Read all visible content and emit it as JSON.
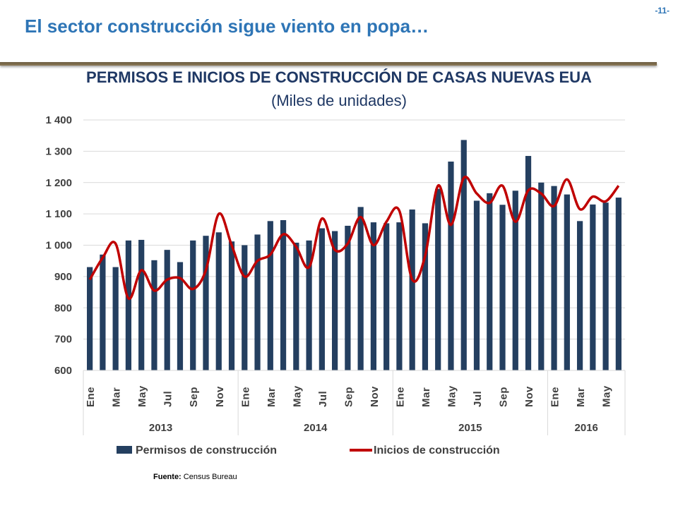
{
  "header": {
    "slide_title": "El sector construcción sigue viento en popa…",
    "page_number": "-11-"
  },
  "chart_data": {
    "type": "bar",
    "title": "PERMISOS E INICIOS DE CONSTRUCCIÓN DE CASAS NUEVAS EUA",
    "subtitle": "(Miles de unidades)",
    "ylim": [
      600,
      1400
    ],
    "yticks": [
      "600",
      "700",
      "800",
      "900",
      "1 000",
      "1 100",
      "1 200",
      "1 300",
      "1 400"
    ],
    "grid": true,
    "legend_position": "bottom",
    "year_groups": [
      {
        "label": "2013",
        "months": 12
      },
      {
        "label": "2014",
        "months": 12
      },
      {
        "label": "2015",
        "months": 12
      },
      {
        "label": "2016",
        "months": 6
      }
    ],
    "categories": [
      "Ene",
      "",
      "Mar",
      "",
      "May",
      "",
      "Jul",
      "",
      "Sep",
      "",
      "Nov",
      "",
      "Ene",
      "",
      "Mar",
      "",
      "May",
      "",
      "Jul",
      "",
      "Sep",
      "",
      "Nov",
      "",
      "Ene",
      "",
      "Mar",
      "",
      "May",
      "",
      "Jul",
      "",
      "Sep",
      "",
      "Nov",
      "",
      "Ene",
      "",
      "Mar",
      "",
      "May",
      ""
    ],
    "series": [
      {
        "name": "Permisos de construcción",
        "type": "bar",
        "color": "#243f60",
        "values": [
          930,
          970,
          930,
          1015,
          1017,
          952,
          985,
          946,
          1015,
          1030,
          1041,
          1012,
          1000,
          1034,
          1077,
          1080,
          1008,
          1015,
          1054,
          1045,
          1062,
          1122,
          1073,
          1070,
          1073,
          1114,
          1070,
          1180,
          1267,
          1336,
          1142,
          1166,
          1129,
          1174,
          1285,
          1200,
          1189,
          1162,
          1077,
          1130,
          1136,
          1152
        ]
      },
      {
        "name": "Inicios de construcción",
        "type": "line",
        "color": "#c00000",
        "values": [
          890,
          960,
          1005,
          830,
          920,
          855,
          890,
          895,
          860,
          920,
          1100,
          1000,
          900,
          950,
          970,
          1035,
          995,
          930,
          1085,
          985,
          1005,
          1090,
          1000,
          1075,
          1110,
          890,
          965,
          1190,
          1065,
          1215,
          1165,
          1135,
          1190,
          1075,
          1175,
          1165,
          1125,
          1210,
          1115,
          1155,
          1140,
          1190
        ]
      }
    ]
  },
  "footer": {
    "source_label": "Fuente:",
    "source_text": "Census Bureau"
  }
}
